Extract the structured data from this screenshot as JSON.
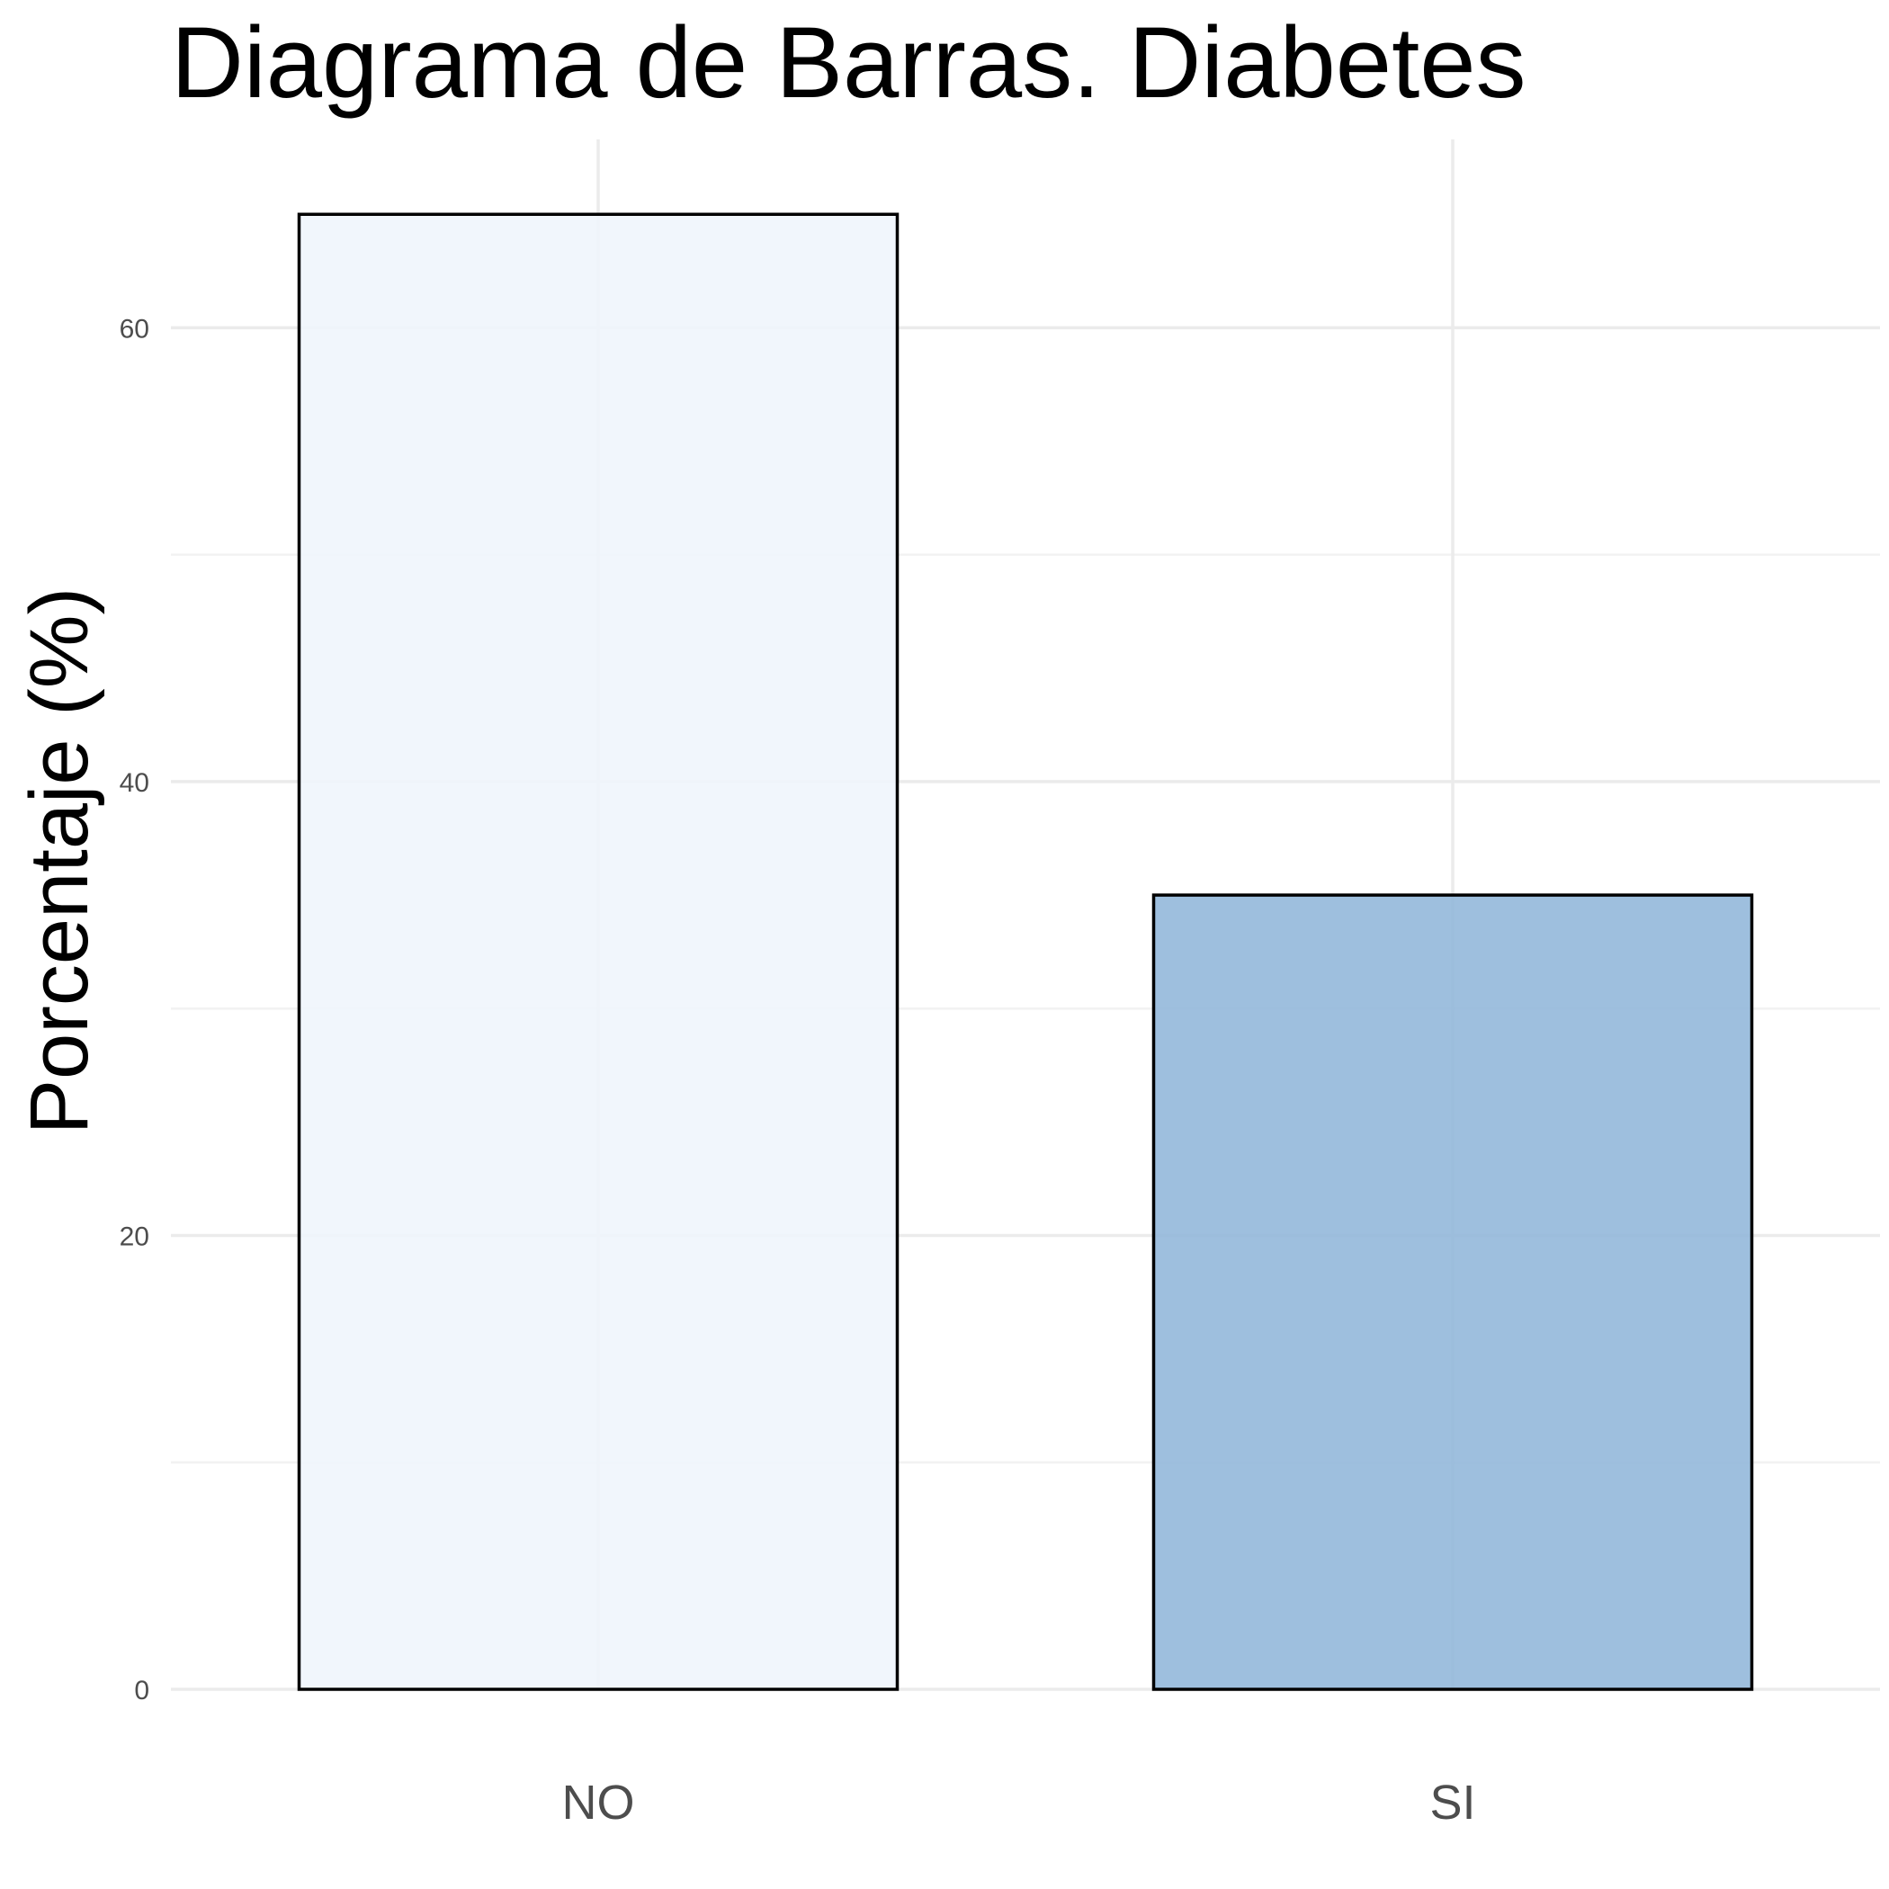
{
  "chart_data": {
    "type": "bar",
    "title": "Diagrama de Barras. Diabetes",
    "xlabel": "",
    "ylabel": "Porcentaje (%)",
    "categories": [
      "NO",
      "SI"
    ],
    "values": [
      65,
      35
    ],
    "ylim": [
      0,
      68.3
    ],
    "yticks": [
      0,
      20,
      40,
      60
    ],
    "grid": true,
    "legend": "none",
    "colors": {
      "bars": [
        "#EFF5FC",
        "#91B6D9"
      ],
      "bar_outline": "#000000",
      "grid": "#EBEBEB"
    }
  }
}
